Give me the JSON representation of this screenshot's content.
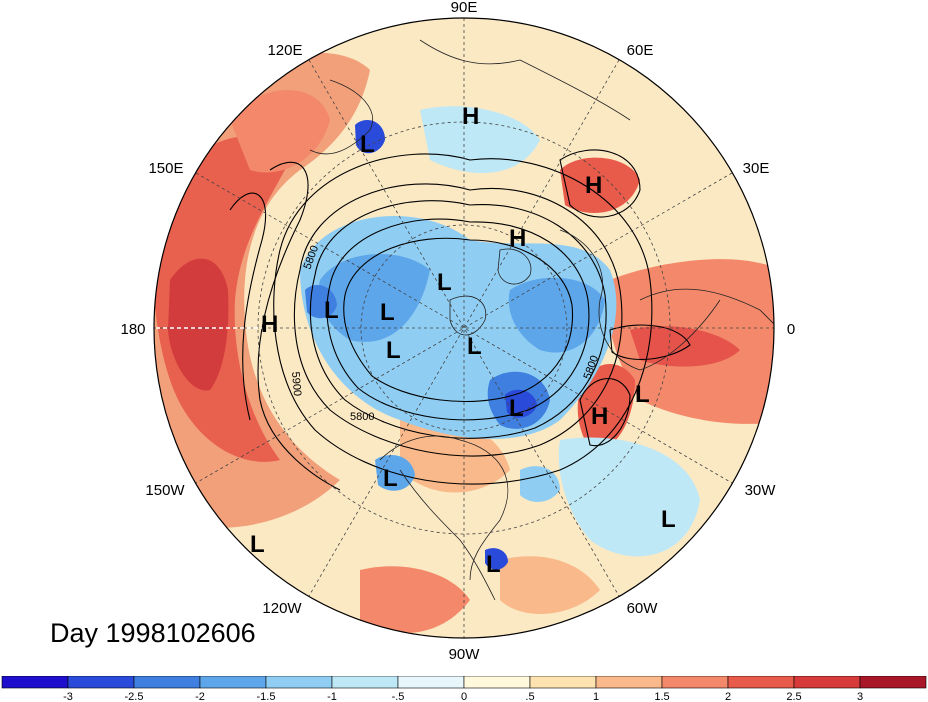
{
  "title": "Day 1998102606",
  "longitude_labels": {
    "e90": "90E",
    "e60": "60E",
    "e30": "30E",
    "zero": "0",
    "w30": "30W",
    "w60": "60W",
    "w90": "90W",
    "w120": "120W",
    "w150": "150W",
    "d180": "180",
    "e150": "150E",
    "e120": "120E"
  },
  "contour_labels": [
    "5800",
    "5900",
    "5800",
    "5800"
  ],
  "pressure_centers": [
    {
      "label": "H"
    },
    {
      "label": "H"
    },
    {
      "label": "H"
    },
    {
      "label": "H"
    },
    {
      "label": "H"
    },
    {
      "label": "L"
    },
    {
      "label": "L"
    },
    {
      "label": "L"
    },
    {
      "label": "L"
    },
    {
      "label": "L"
    },
    {
      "label": "L"
    },
    {
      "label": "L"
    },
    {
      "label": "L"
    },
    {
      "label": "L"
    },
    {
      "label": "L"
    },
    {
      "label": "L"
    },
    {
      "label": "L"
    }
  ],
  "colorbar": {
    "ticks": [
      "-3",
      "-2.5",
      "-2",
      "-1.5",
      "-1",
      "-.5",
      "0",
      ".5",
      "1",
      "1.5",
      "2",
      "2.5",
      "3"
    ],
    "colors": [
      "#1f0fcc",
      "#2a4ad9",
      "#3e7fe0",
      "#5ea6ea",
      "#8fcdf2",
      "#bfe8f7",
      "#e6f6fb",
      "#fff8dc",
      "#fde3b0",
      "#f9b98a",
      "#f3896a",
      "#e85a4a",
      "#d63a3a",
      "#a81628"
    ]
  }
}
